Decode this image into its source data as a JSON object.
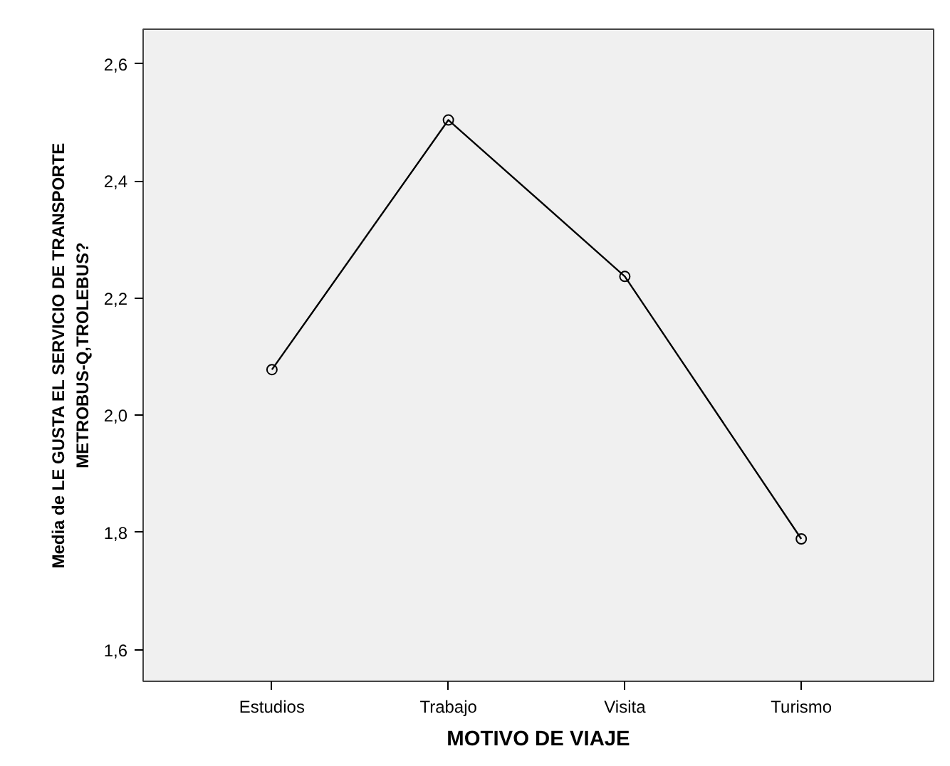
{
  "chart_data": {
    "type": "line",
    "xlabel": "MOTIVO DE VIAJE",
    "ylabel": "Media de LE GUSTA EL SERVICIO DE TRANSPORTE\nMETROBUS-Q,TROLEBUS?",
    "categories": [
      "Estudios",
      "Trabajo",
      "Visita",
      "Turismo"
    ],
    "series": [
      {
        "color": "#000000",
        "values": [
          2.078,
          2.504,
          2.237,
          1.789
        ]
      }
    ],
    "ylim": [
      1.546,
      2.659
    ],
    "yticks": [
      {
        "value": 1.6,
        "label": "1,6"
      },
      {
        "value": 1.8,
        "label": "1,8"
      },
      {
        "value": 2.0,
        "label": "2,0"
      },
      {
        "value": 2.2,
        "label": "2,2"
      },
      {
        "value": 2.4,
        "label": "2,4"
      },
      {
        "value": 2.6,
        "label": "2,6"
      }
    ],
    "grid": false,
    "marker": "circle",
    "line_style": "solid"
  }
}
